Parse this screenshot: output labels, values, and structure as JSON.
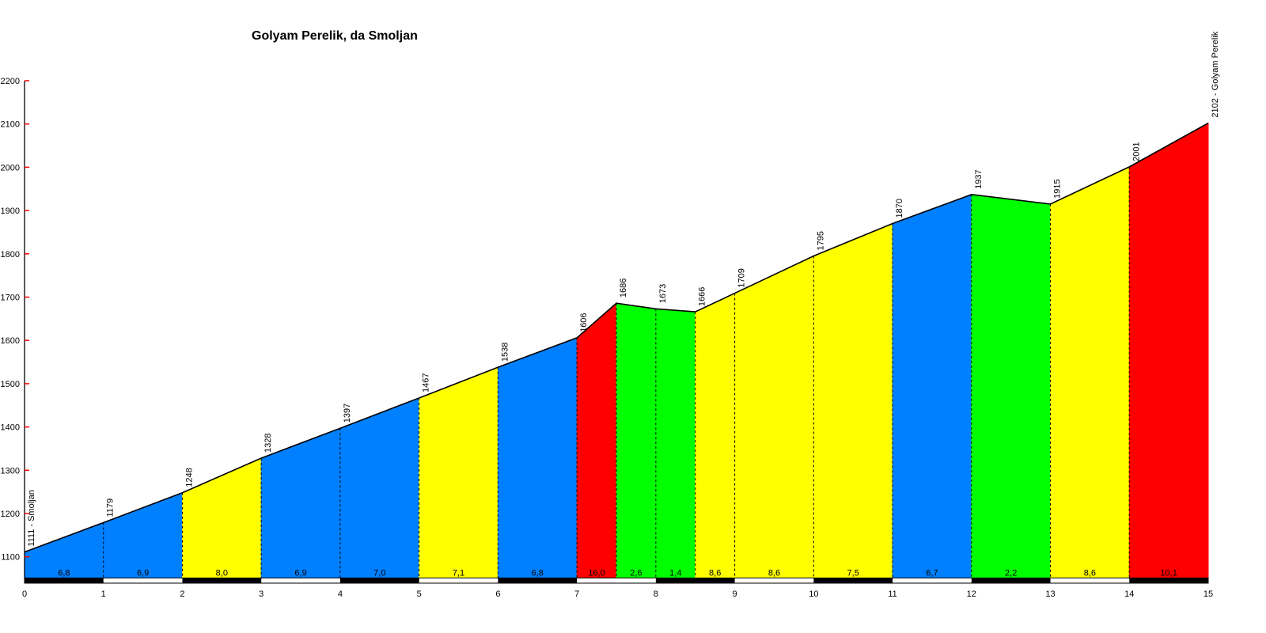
{
  "chart_data": {
    "type": "area",
    "title": "Golyam Perelik, da Smoljan",
    "x_unit": "km",
    "xlim": [
      0,
      15
    ],
    "ylim": [
      1100,
      2200
    ],
    "grid": "dashed-vertical-per-km",
    "legend": "none",
    "start_label": "1111 - Smoljan",
    "end_label": "2102 - Golyam Perelik",
    "y_ticks": [
      2200,
      2100,
      2000,
      1900,
      1800,
      1700,
      1600,
      1500,
      1400,
      1300,
      1200,
      1100
    ],
    "x_ticks": [
      0,
      1,
      2,
      3,
      4,
      5,
      6,
      7,
      8,
      9,
      10,
      11,
      12,
      13,
      14,
      15
    ],
    "points": [
      {
        "km": 0,
        "elev": 1111,
        "label": "1111 - Smoljan"
      },
      {
        "km": 1,
        "elev": 1179,
        "label": "1179"
      },
      {
        "km": 2,
        "elev": 1248,
        "label": "1248"
      },
      {
        "km": 3,
        "elev": 1328,
        "label": "1328"
      },
      {
        "km": 4,
        "elev": 1397,
        "label": "1397"
      },
      {
        "km": 5,
        "elev": 1467,
        "label": "1467"
      },
      {
        "km": 6,
        "elev": 1538,
        "label": "1538"
      },
      {
        "km": 7,
        "elev": 1606,
        "label": "1606"
      },
      {
        "km": 7.5,
        "elev": 1686,
        "label": "1686"
      },
      {
        "km": 8,
        "elev": 1673,
        "label": "1673"
      },
      {
        "km": 8.5,
        "elev": 1666,
        "label": "1666"
      },
      {
        "km": 9,
        "elev": 1709,
        "label": "1709"
      },
      {
        "km": 10,
        "elev": 1795,
        "label": "1795"
      },
      {
        "km": 11,
        "elev": 1870,
        "label": "1870"
      },
      {
        "km": 12,
        "elev": 1937,
        "label": "1937"
      },
      {
        "km": 13,
        "elev": 1915,
        "label": "1915"
      },
      {
        "km": 14,
        "elev": 2001,
        "label": "2001"
      },
      {
        "km": 15,
        "elev": 2102,
        "label": "2102 - Golyam Perelik"
      }
    ],
    "segments": [
      {
        "from": 0,
        "to": 1,
        "grade": "6,8",
        "color": "blue"
      },
      {
        "from": 1,
        "to": 2,
        "grade": "6,9",
        "color": "blue"
      },
      {
        "from": 2,
        "to": 3,
        "grade": "8,0",
        "color": "yellow"
      },
      {
        "from": 3,
        "to": 4,
        "grade": "6,9",
        "color": "blue"
      },
      {
        "from": 4,
        "to": 5,
        "grade": "7,0",
        "color": "blue"
      },
      {
        "from": 5,
        "to": 6,
        "grade": "7,1",
        "color": "yellow"
      },
      {
        "from": 6,
        "to": 7,
        "grade": "6,8",
        "color": "blue"
      },
      {
        "from": 7,
        "to": 7.5,
        "grade": "16,0",
        "color": "red"
      },
      {
        "from": 7.5,
        "to": 8,
        "grade": "2,6",
        "color": "green"
      },
      {
        "from": 8,
        "to": 8.5,
        "grade": "1,4",
        "color": "green"
      },
      {
        "from": 8.5,
        "to": 9,
        "grade": "8,6",
        "color": "yellow"
      },
      {
        "from": 9,
        "to": 10,
        "grade": "8,6",
        "color": "yellow"
      },
      {
        "from": 10,
        "to": 11,
        "grade": "7,5",
        "color": "yellow"
      },
      {
        "from": 11,
        "to": 12,
        "grade": "6,7",
        "color": "blue"
      },
      {
        "from": 12,
        "to": 13,
        "grade": "2,2",
        "color": "green"
      },
      {
        "from": 13,
        "to": 14,
        "grade": "8,6",
        "color": "yellow"
      },
      {
        "from": 14,
        "to": 15,
        "grade": "10,1",
        "color": "red"
      }
    ],
    "km_bar": {
      "black_km_starts": [
        0,
        2,
        4,
        6,
        8,
        10,
        12,
        14
      ]
    },
    "colors": {
      "blue": "#0080FF",
      "yellow": "#FFFF00",
      "green": "#00FF00",
      "red": "#FF0000",
      "axis_tick": "#FF0000",
      "outline": "#000000",
      "text": "#000000",
      "background": "#FFFFFF"
    }
  }
}
